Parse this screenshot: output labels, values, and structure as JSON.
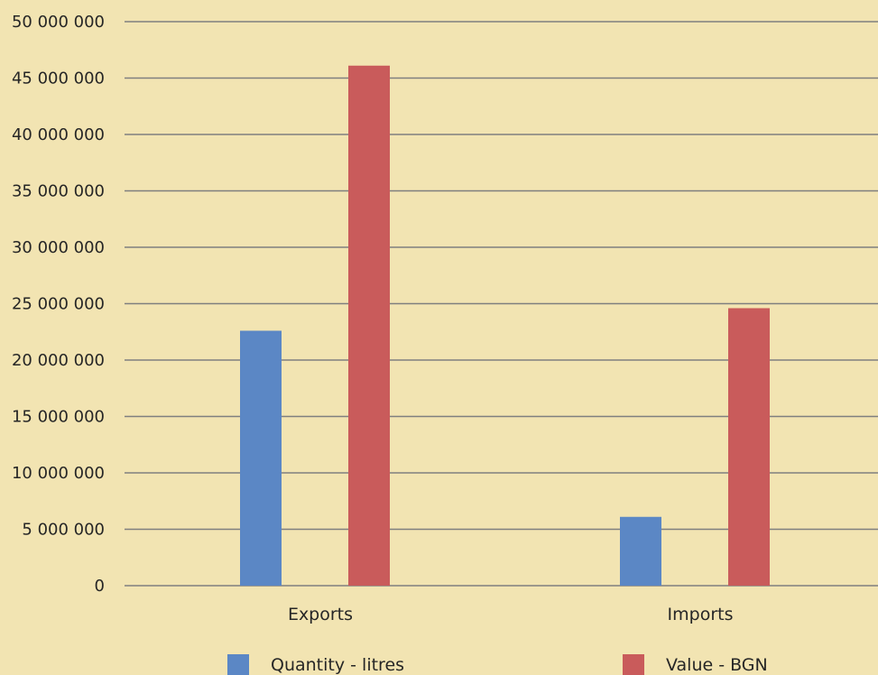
{
  "chart_data": {
    "type": "bar",
    "categories": [
      "Exports",
      "Imports"
    ],
    "series": [
      {
        "name": "Quantity - litres",
        "values": [
          22600000,
          6100000
        ],
        "color": "#5b87c5"
      },
      {
        "name": "Value - BGN",
        "values": [
          46100000,
          24600000
        ],
        "color": "#c95b5b"
      }
    ],
    "ylim": [
      0,
      50000000
    ],
    "y_ticks": [
      {
        "value": 0,
        "label": "0"
      },
      {
        "value": 5000000,
        "label": "5 000 000"
      },
      {
        "value": 10000000,
        "label": "10 000 000"
      },
      {
        "value": 15000000,
        "label": "15 000 000"
      },
      {
        "value": 20000000,
        "label": "20 000 000"
      },
      {
        "value": 25000000,
        "label": "25 000 000"
      },
      {
        "value": 30000000,
        "label": "30 000 000"
      },
      {
        "value": 35000000,
        "label": "35 000 000"
      },
      {
        "value": 40000000,
        "label": "40 000 000"
      },
      {
        "value": 45000000,
        "label": "45 000 000"
      },
      {
        "value": 50000000,
        "label": "50 000 000"
      }
    ],
    "grid": true,
    "legend_position": "bottom",
    "background": "#f2e4b2"
  }
}
